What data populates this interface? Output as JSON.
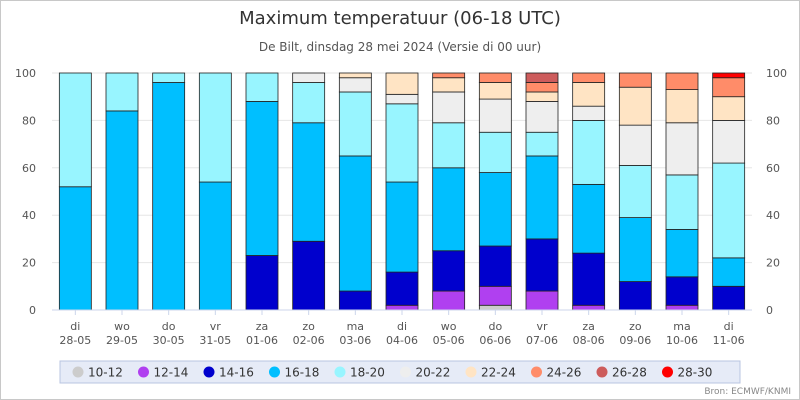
{
  "title": "Maximum temperatuur (06-18 UTC)",
  "subtitle": "De Bilt, dinsdag 28 mei 2024 (Versie di 00 uur)",
  "credit": "Bron: ECMWF/KNMI",
  "chart_data": {
    "type": "bar",
    "stacked": true,
    "ylim": [
      0,
      100
    ],
    "yticks": [
      0,
      20,
      40,
      60,
      80,
      100
    ],
    "dual_y_axis": true,
    "grid": "horizontal",
    "legend_position": "bottom",
    "categories": [
      [
        "di",
        "28-05"
      ],
      [
        "wo",
        "29-05"
      ],
      [
        "do",
        "30-05"
      ],
      [
        "vr",
        "31-05"
      ],
      [
        "za",
        "01-06"
      ],
      [
        "zo",
        "02-06"
      ],
      [
        "ma",
        "03-06"
      ],
      [
        "di",
        "04-06"
      ],
      [
        "wo",
        "05-06"
      ],
      [
        "do",
        "06-06"
      ],
      [
        "vr",
        "07-06"
      ],
      [
        "za",
        "08-06"
      ],
      [
        "zo",
        "09-06"
      ],
      [
        "ma",
        "10-06"
      ],
      [
        "di",
        "11-06"
      ]
    ],
    "series": [
      {
        "name": "10-12",
        "color": "#cccccc",
        "values": [
          0,
          0,
          0,
          0,
          0,
          0,
          0,
          0,
          0,
          2,
          0,
          0,
          0,
          0,
          0
        ]
      },
      {
        "name": "12-14",
        "color": "#b040f0",
        "values": [
          0,
          0,
          0,
          0,
          0,
          0,
          0,
          2,
          8,
          8,
          8,
          2,
          0,
          2,
          0
        ]
      },
      {
        "name": "14-16",
        "color": "#0000cd",
        "values": [
          0,
          0,
          0,
          0,
          23,
          29,
          8,
          14,
          17,
          17,
          22,
          22,
          12,
          12,
          10
        ]
      },
      {
        "name": "16-18",
        "color": "#00bfff",
        "values": [
          52,
          84,
          96,
          54,
          65,
          50,
          57,
          38,
          35,
          31,
          35,
          29,
          27,
          20,
          12
        ]
      },
      {
        "name": "18-20",
        "color": "#98f5ff",
        "values": [
          48,
          16,
          4,
          46,
          12,
          17,
          27,
          33,
          19,
          17,
          10,
          27,
          22,
          23,
          40
        ]
      },
      {
        "name": "20-22",
        "color": "#eeeeee",
        "values": [
          0,
          0,
          0,
          0,
          0,
          4,
          6,
          4,
          13,
          14,
          13,
          6,
          17,
          22,
          18
        ]
      },
      {
        "name": "22-24",
        "color": "#ffe4c4",
        "values": [
          0,
          0,
          0,
          0,
          0,
          0,
          2,
          9,
          6,
          7,
          4,
          10,
          16,
          14,
          10
        ]
      },
      {
        "name": "24-26",
        "color": "#ff8c69",
        "values": [
          0,
          0,
          0,
          0,
          0,
          0,
          0,
          0,
          2,
          4,
          4,
          4,
          6,
          7,
          8
        ]
      },
      {
        "name": "26-28",
        "color": "#cd5c5c",
        "values": [
          0,
          0,
          0,
          0,
          0,
          0,
          0,
          0,
          0,
          0,
          4,
          0,
          0,
          0,
          0
        ]
      },
      {
        "name": "28-30",
        "color": "#ff0000",
        "values": [
          0,
          0,
          0,
          0,
          0,
          0,
          0,
          0,
          0,
          0,
          0,
          0,
          0,
          0,
          2
        ]
      }
    ]
  }
}
